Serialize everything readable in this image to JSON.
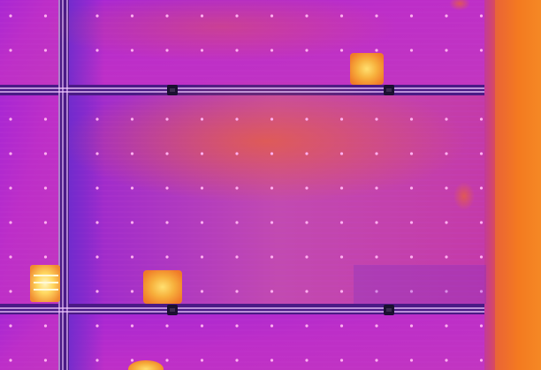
{
  "image": {
    "subject": "thermal-infrared-solar-panel-array",
    "palette": {
      "cold": "#3c1fa0",
      "panel_base": "#b62ad0",
      "panel_warm": "#d03aa6",
      "frame_line": "#f0c8ff",
      "cell_point": "#ffb0f0",
      "hotspot_outer": "#f07a28",
      "hotspot_core": "#ffe070",
      "edge_hot": "#f47a20",
      "edge_mid": "#e0504a",
      "clamp": "#1a1030"
    },
    "hotspot_count": 4,
    "panel_count": 6
  }
}
